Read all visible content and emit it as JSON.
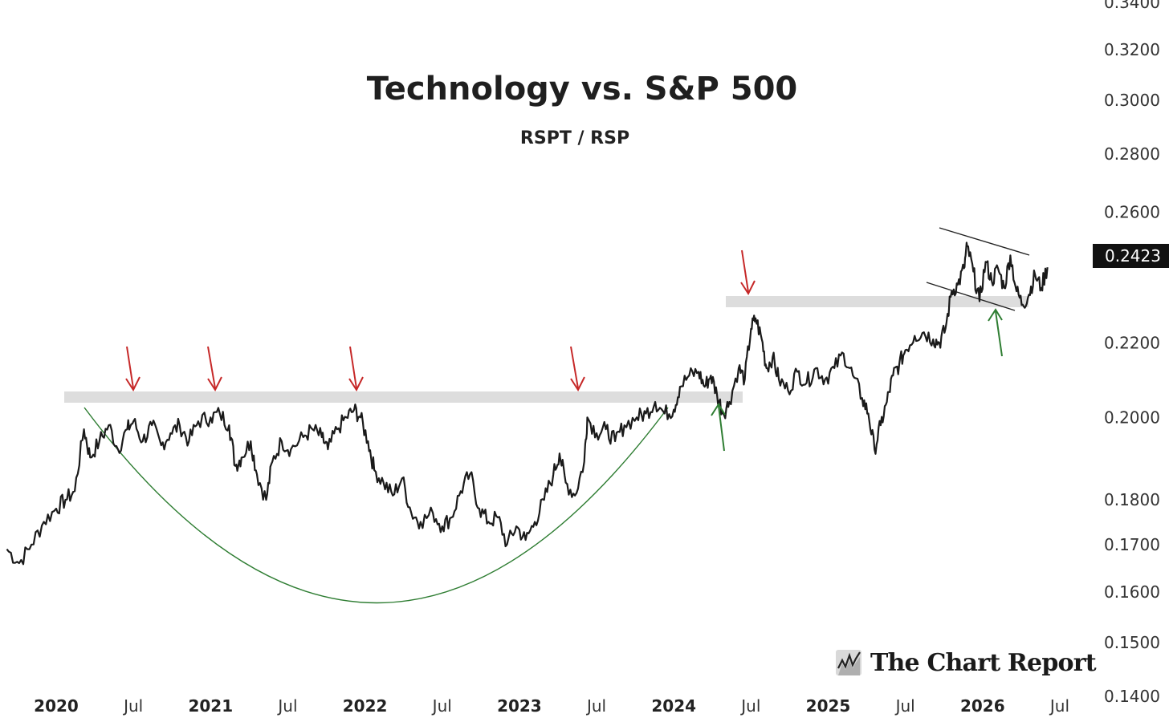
{
  "chart_data": {
    "type": "line",
    "title": "Technology vs. S&P 500",
    "subtitle": "RSPT / RSP",
    "scale": "log",
    "ylim": [
      0.1355,
      0.341
    ],
    "y_ticks": [
      "0.1400",
      "0.1500",
      "0.1600",
      "0.1700",
      "0.1800",
      "0.2000",
      "0.2200",
      "0.2600",
      "0.2800",
      "0.3000",
      "0.3200",
      "0.3400"
    ],
    "x_ticks": [
      {
        "label": "2020",
        "t": 2020.0,
        "kind": "year"
      },
      {
        "label": "Jul",
        "t": 2020.5,
        "kind": "month"
      },
      {
        "label": "2021",
        "t": 2021.0,
        "kind": "year"
      },
      {
        "label": "Jul",
        "t": 2021.5,
        "kind": "month"
      },
      {
        "label": "2022",
        "t": 2022.0,
        "kind": "year"
      },
      {
        "label": "Jul",
        "t": 2022.5,
        "kind": "month"
      },
      {
        "label": "2023",
        "t": 2023.0,
        "kind": "year"
      },
      {
        "label": "Jul",
        "t": 2023.5,
        "kind": "month"
      },
      {
        "label": "2024",
        "t": 2024.0,
        "kind": "year"
      },
      {
        "label": "Jul",
        "t": 2024.5,
        "kind": "month"
      },
      {
        "label": "2025",
        "t": 2025.0,
        "kind": "year"
      },
      {
        "label": "Jul",
        "t": 2025.5,
        "kind": "month"
      },
      {
        "label": "2026",
        "t": 2026.0,
        "kind": "year"
      },
      {
        "label": "Jul",
        "t": 2026.5,
        "kind": "month"
      }
    ],
    "last_value": "0.2423",
    "series": [
      {
        "name": "RSPT / RSP",
        "color": "#1a1a1a",
        "points": [
          [
            2019.68,
            0.169
          ],
          [
            2019.76,
            0.166
          ],
          [
            2019.84,
            0.17
          ],
          [
            2019.92,
            0.175
          ],
          [
            2020.0,
            0.178
          ],
          [
            2020.06,
            0.18
          ],
          [
            2020.12,
            0.182
          ],
          [
            2020.18,
            0.197
          ],
          [
            2020.22,
            0.19
          ],
          [
            2020.28,
            0.194
          ],
          [
            2020.34,
            0.198
          ],
          [
            2020.4,
            0.192
          ],
          [
            2020.46,
            0.197
          ],
          [
            2020.5,
            0.199
          ],
          [
            2020.56,
            0.194
          ],
          [
            2020.62,
            0.198
          ],
          [
            2020.68,
            0.193
          ],
          [
            2020.74,
            0.196
          ],
          [
            2020.8,
            0.198
          ],
          [
            2020.86,
            0.194
          ],
          [
            2020.92,
            0.199
          ],
          [
            2021.0,
            0.2
          ],
          [
            2021.06,
            0.201
          ],
          [
            2021.12,
            0.198
          ],
          [
            2021.16,
            0.188
          ],
          [
            2021.2,
            0.19
          ],
          [
            2021.26,
            0.194
          ],
          [
            2021.3,
            0.186
          ],
          [
            2021.36,
            0.18
          ],
          [
            2021.4,
            0.189
          ],
          [
            2021.46,
            0.194
          ],
          [
            2021.52,
            0.192
          ],
          [
            2021.6,
            0.195
          ],
          [
            2021.66,
            0.197
          ],
          [
            2021.72,
            0.195
          ],
          [
            2021.76,
            0.192
          ],
          [
            2021.82,
            0.197
          ],
          [
            2021.88,
            0.2
          ],
          [
            2021.93,
            0.202
          ],
          [
            2021.97,
            0.2
          ],
          [
            2022.02,
            0.194
          ],
          [
            2022.06,
            0.187
          ],
          [
            2022.12,
            0.184
          ],
          [
            2022.18,
            0.181
          ],
          [
            2022.24,
            0.185
          ],
          [
            2022.3,
            0.177
          ],
          [
            2022.36,
            0.175
          ],
          [
            2022.44,
            0.177
          ],
          [
            2022.5,
            0.174
          ],
          [
            2022.56,
            0.176
          ],
          [
            2022.62,
            0.182
          ],
          [
            2022.68,
            0.186
          ],
          [
            2022.74,
            0.178
          ],
          [
            2022.8,
            0.175
          ],
          [
            2022.86,
            0.176
          ],
          [
            2022.92,
            0.17
          ],
          [
            2022.98,
            0.174
          ],
          [
            2023.04,
            0.171
          ],
          [
            2023.1,
            0.175
          ],
          [
            2023.16,
            0.18
          ],
          [
            2023.22,
            0.186
          ],
          [
            2023.26,
            0.191
          ],
          [
            2023.3,
            0.184
          ],
          [
            2023.36,
            0.181
          ],
          [
            2023.42,
            0.189
          ],
          [
            2023.44,
            0.2
          ],
          [
            2023.5,
            0.196
          ],
          [
            2023.56,
            0.197
          ],
          [
            2023.62,
            0.194
          ],
          [
            2023.68,
            0.198
          ],
          [
            2023.76,
            0.2
          ],
          [
            2023.82,
            0.201
          ],
          [
            2023.88,
            0.204
          ],
          [
            2023.94,
            0.201
          ],
          [
            2024.0,
            0.202
          ],
          [
            2024.04,
            0.208
          ],
          [
            2024.1,
            0.211
          ],
          [
            2024.16,
            0.212
          ],
          [
            2024.2,
            0.208
          ],
          [
            2024.24,
            0.211
          ],
          [
            2024.28,
            0.206
          ],
          [
            2024.32,
            0.201
          ],
          [
            2024.36,
            0.204
          ],
          [
            2024.42,
            0.213
          ],
          [
            2024.46,
            0.21
          ],
          [
            2024.5,
            0.224
          ],
          [
            2024.53,
            0.227
          ],
          [
            2024.57,
            0.221
          ],
          [
            2024.6,
            0.213
          ],
          [
            2024.64,
            0.216
          ],
          [
            2024.68,
            0.21
          ],
          [
            2024.74,
            0.207
          ],
          [
            2024.8,
            0.212
          ],
          [
            2024.86,
            0.209
          ],
          [
            2024.92,
            0.213
          ],
          [
            2024.98,
            0.21
          ],
          [
            2025.04,
            0.213
          ],
          [
            2025.1,
            0.217
          ],
          [
            2025.16,
            0.211
          ],
          [
            2025.22,
            0.205
          ],
          [
            2025.26,
            0.201
          ],
          [
            2025.3,
            0.192
          ],
          [
            2025.34,
            0.198
          ],
          [
            2025.38,
            0.204
          ],
          [
            2025.42,
            0.211
          ],
          [
            2025.46,
            0.214
          ],
          [
            2025.5,
            0.218
          ],
          [
            2025.56,
            0.222
          ],
          [
            2025.62,
            0.223
          ],
          [
            2025.68,
            0.221
          ],
          [
            2025.72,
            0.22
          ],
          [
            2025.76,
            0.224
          ],
          [
            2025.8,
            0.235
          ],
          [
            2025.84,
            0.237
          ],
          [
            2025.88,
            0.242
          ],
          [
            2025.9,
            0.249
          ],
          [
            2025.94,
            0.241
          ],
          [
            2025.98,
            0.232
          ],
          [
            2026.02,
            0.244
          ],
          [
            2026.06,
            0.238
          ],
          [
            2026.1,
            0.242
          ],
          [
            2026.14,
            0.236
          ],
          [
            2026.18,
            0.246
          ],
          [
            2026.22,
            0.235
          ],
          [
            2026.26,
            0.231
          ],
          [
            2026.3,
            0.234
          ],
          [
            2026.34,
            0.24
          ],
          [
            2026.38,
            0.236
          ],
          [
            2026.42,
            0.2423
          ]
        ]
      }
    ],
    "annotations": {
      "resistance_level": 0.2005,
      "support_2024": 0.227,
      "cup_color": "#2e7d32",
      "down_arrow_color": "#c62828",
      "up_arrow_color": "#2e7d32",
      "band_color": "#dddddd"
    }
  },
  "brand": {
    "name": "The Chart Report"
  }
}
